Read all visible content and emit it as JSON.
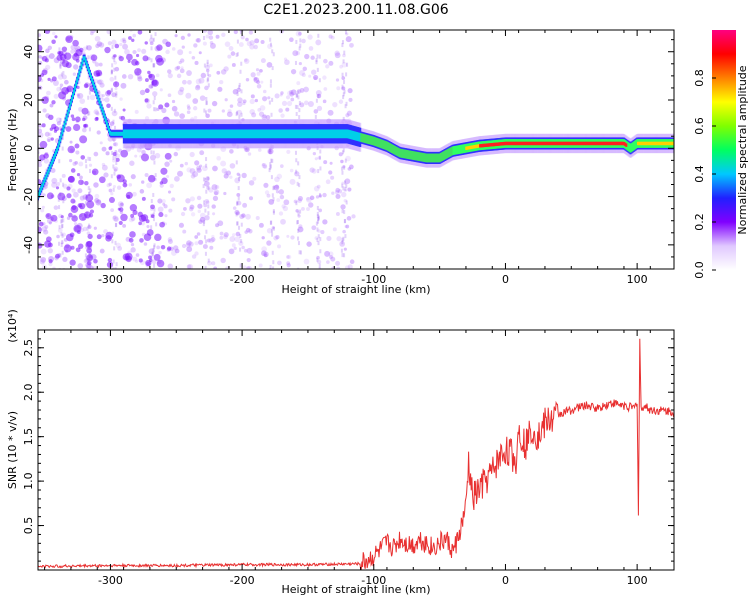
{
  "title": "C2E1.2023.200.11.08.G06",
  "chart_data": [
    {
      "type": "heatmap",
      "xlabel": "Height of straight line (km)",
      "ylabel": "Frequency (Hz)",
      "xlim": [
        -355,
        128
      ],
      "ylim": [
        -50,
        49
      ],
      "xticks": [
        -300,
        -200,
        -100,
        0,
        100
      ],
      "yticks": [
        -40,
        -20,
        0,
        20,
        40
      ],
      "grid": false,
      "colorbar": {
        "label": "Normalized spectral amplitude",
        "range": [
          0.0,
          1.0
        ],
        "ticks": [
          0.0,
          0.2,
          0.4,
          0.6,
          0.8
        ],
        "colors": [
          "#ffffff",
          "#e0c8ff",
          "#8000ff",
          "#2020ff",
          "#00c8ff",
          "#00ff60",
          "#80ff00",
          "#ffff00",
          "#ff8000",
          "#ff0000",
          "#ff0080"
        ]
      },
      "ridge": {
        "x": [
          -355,
          -340,
          -320,
          -300,
          -280,
          -250,
          -200,
          -150,
          -120,
          -100,
          -90,
          -80,
          -70,
          -60,
          -50,
          -40,
          -30,
          -20,
          0,
          30,
          60,
          90,
          95,
          100,
          128
        ],
        "y": [
          -20,
          0,
          38,
          6,
          6,
          6,
          6,
          6,
          6,
          3,
          1,
          -2,
          -3,
          -4,
          -4,
          -1,
          0,
          1,
          2,
          2,
          2,
          2,
          0,
          2,
          2
        ]
      }
    },
    {
      "type": "line",
      "xlabel": "Height of straight line (km)",
      "ylabel": "SNR (10 * v/v)",
      "y_multiplier": "(x10⁴)",
      "xlim": [
        -355,
        128
      ],
      "ylim": [
        0.0,
        2.7
      ],
      "xticks": [
        -300,
        -200,
        -100,
        0,
        100
      ],
      "yticks": [
        0.5,
        1.0,
        1.5,
        2.0,
        2.5
      ],
      "color": "#e83030",
      "series": [
        {
          "x": [
            -355,
            -300,
            -250,
            -200,
            -150,
            -110,
            -100,
            -95,
            -90,
            -85,
            -80,
            -75,
            -70,
            -65,
            -60,
            -55,
            -50,
            -45,
            -40,
            -35,
            -30,
            -28,
            -25,
            -20,
            -15,
            -10,
            -5,
            0,
            5,
            8,
            10,
            15,
            20,
            25,
            30,
            40,
            50,
            60,
            70,
            80,
            90,
            98,
            100,
            101,
            102,
            103,
            105,
            110,
            120,
            128
          ],
          "y": [
            0.04,
            0.05,
            0.05,
            0.06,
            0.06,
            0.07,
            0.15,
            0.22,
            0.3,
            0.25,
            0.35,
            0.3,
            0.28,
            0.35,
            0.3,
            0.25,
            0.3,
            0.35,
            0.2,
            0.4,
            0.7,
            1.2,
            0.8,
            0.9,
            1.0,
            1.1,
            1.25,
            1.35,
            1.3,
            1.2,
            1.6,
            1.4,
            1.6,
            1.5,
            1.65,
            1.75,
            1.8,
            1.85,
            1.82,
            1.88,
            1.85,
            1.82,
            1.9,
            0.6,
            2.6,
            1.8,
            1.85,
            1.8,
            1.79,
            1.78
          ]
        }
      ]
    }
  ]
}
